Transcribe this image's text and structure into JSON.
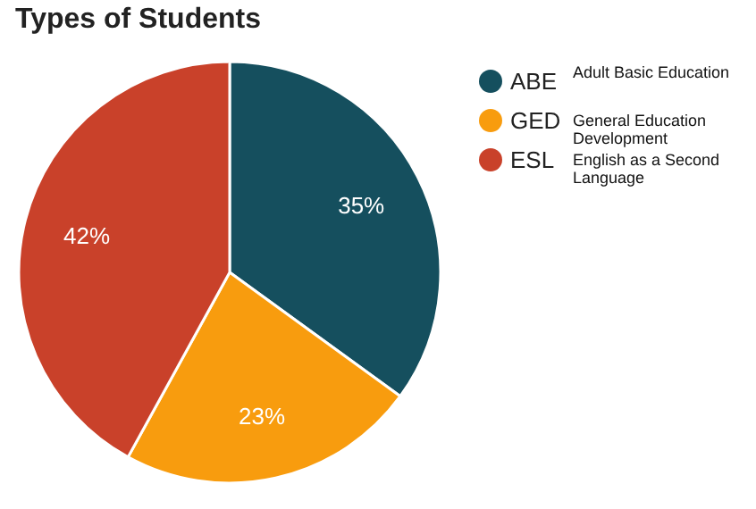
{
  "chart_data": {
    "type": "pie",
    "title": "Types of Students",
    "categories": [
      "ABE",
      "GED",
      "ESL"
    ],
    "values": [
      35,
      23,
      42
    ],
    "colors": [
      "#154f5e",
      "#f89c0e",
      "#c9412a"
    ],
    "value_labels": [
      "35%",
      "23%",
      "42%"
    ],
    "annotations": [
      "Adult Basic Education",
      "General Education Development",
      "English as a Second Language"
    ],
    "legend": "right"
  }
}
